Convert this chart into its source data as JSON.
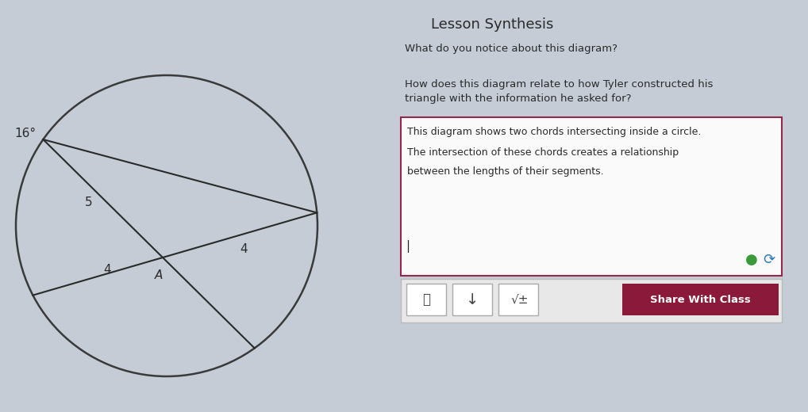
{
  "bg_color": "#c5ccd5",
  "circle_color": "#3a3a3a",
  "line_color": "#2a2a2a",
  "title": "Lesson Synthesis",
  "q1": "What do you notice about this diagram?",
  "q2_line1": "How does this diagram relate to how Tyler constructed his",
  "q2_line2": "triangle with the information he asked for?",
  "box_text_line1": "This diagram shows two chords intersecting inside a circle.",
  "box_text_line2": "The intersection of these chords creates a relationship",
  "box_text_line3": "between the lengths of their segments.",
  "label_16": "16°",
  "label_5": "5",
  "label_4a": "4",
  "label_4b": "4",
  "label_A": "A",
  "share_btn_text": "Share With Class",
  "share_btn_color": "#8b1a3a",
  "box_border_color": "#8b1a3a",
  "text_color": "#2a2a2a",
  "toolbar_bg": "#e8e8e8"
}
